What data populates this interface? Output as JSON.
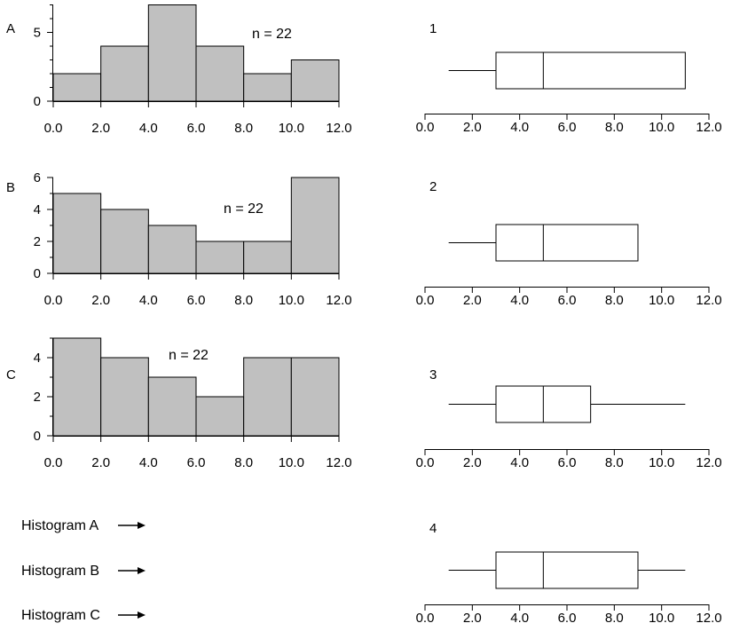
{
  "chart_data": [
    {
      "type": "bar",
      "label": "A",
      "annotation": "n = 22",
      "bin_edges": [
        0,
        2,
        4,
        6,
        8,
        10,
        12
      ],
      "values": [
        2,
        4,
        7,
        4,
        2,
        3
      ],
      "xticks": [
        "0.0",
        "2.0",
        "4.0",
        "6.0",
        "8.0",
        "10.0",
        "12.0"
      ],
      "yticks": [
        0,
        5
      ],
      "ylim": [
        0,
        7
      ]
    },
    {
      "type": "bar",
      "label": "B",
      "annotation": "n = 22",
      "bin_edges": [
        0,
        2,
        4,
        6,
        8,
        10,
        12
      ],
      "values": [
        5,
        4,
        3,
        2,
        2,
        6
      ],
      "xticks": [
        "0.0",
        "2.0",
        "4.0",
        "6.0",
        "8.0",
        "10.0",
        "12.0"
      ],
      "yticks": [
        0,
        2,
        4,
        6
      ],
      "ylim": [
        0,
        6
      ]
    },
    {
      "type": "bar",
      "label": "C",
      "annotation": "n = 22",
      "bin_edges": [
        0,
        2,
        4,
        6,
        8,
        10,
        12
      ],
      "values": [
        5,
        4,
        3,
        2,
        4,
        4
      ],
      "xticks": [
        "0.0",
        "2.0",
        "4.0",
        "6.0",
        "8.0",
        "10.0",
        "12.0"
      ],
      "yticks": [
        0,
        2,
        4
      ],
      "ylim": [
        0,
        5
      ]
    },
    {
      "type": "boxplot",
      "label": "1",
      "whisker_low": 1,
      "q1": 3,
      "median": 5,
      "q3": 11,
      "whisker_high": 11,
      "xlim": [
        0,
        12
      ],
      "xticks": [
        "0.0",
        "2.0",
        "4.0",
        "6.0",
        "8.0",
        "10.0",
        "12.0"
      ]
    },
    {
      "type": "boxplot",
      "label": "2",
      "whisker_low": 1,
      "q1": 3,
      "median": 5,
      "q3": 9,
      "whisker_high": 9,
      "xlim": [
        0,
        12
      ],
      "xticks": [
        "0.0",
        "2.0",
        "4.0",
        "6.0",
        "8.0",
        "10.0",
        "12.0"
      ]
    },
    {
      "type": "boxplot",
      "label": "3",
      "whisker_low": 1,
      "q1": 3,
      "median": 5,
      "q3": 7,
      "whisker_high": 11,
      "xlim": [
        0,
        12
      ],
      "xticks": [
        "0.0",
        "2.0",
        "4.0",
        "6.0",
        "8.0",
        "10.0",
        "12.0"
      ]
    },
    {
      "type": "boxplot",
      "label": "4",
      "whisker_low": 1,
      "q1": 3,
      "median": 5,
      "q3": 9,
      "whisker_high": 11,
      "xlim": [
        0,
        12
      ],
      "xticks": [
        "0.0",
        "2.0",
        "4.0",
        "6.0",
        "8.0",
        "10.0",
        "12.0"
      ]
    }
  ],
  "matching": [
    "Histogram A",
    "Histogram B",
    "Histogram C"
  ],
  "colors": {
    "bar_fill": "#c0c0c0",
    "stroke": "#000000",
    "box_fill": "#ffffff"
  }
}
